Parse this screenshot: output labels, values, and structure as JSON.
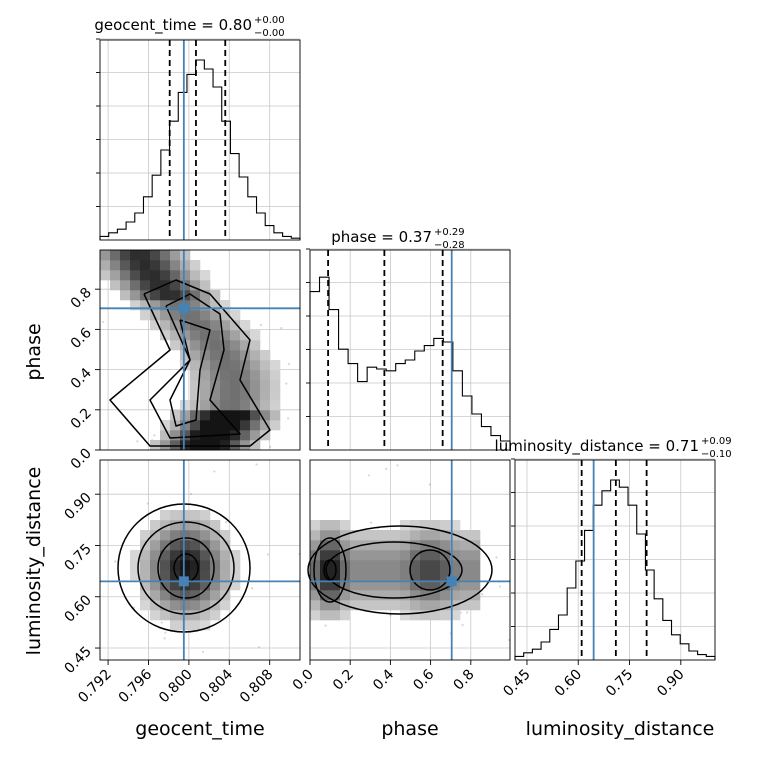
{
  "chart_data": {
    "type": "corner",
    "parameters": [
      "geocent_time",
      "phase",
      "luminosity_distance"
    ],
    "truths": {
      "geocent_time": 0.7995,
      "phase": 0.705,
      "luminosity_distance": 0.645
    },
    "ranges": {
      "geocent_time": [
        0.7912,
        0.811
      ],
      "phase": [
        0.0,
        0.995
      ],
      "luminosity_distance": [
        0.415,
        1.0
      ]
    },
    "titles": [
      {
        "param": "geocent_time",
        "main": "geocent_time = 0.80",
        "sup": "+0.00",
        "sub": "−0.00"
      },
      {
        "param": "phase",
        "main": "phase = 0.37",
        "sup": "+0.29",
        "sub": "−0.28"
      },
      {
        "param": "luminosity_distance",
        "main": "luminosity_distance = 0.71",
        "sup": "+0.09",
        "sub": "−0.10"
      }
    ],
    "quantiles": {
      "geocent_time": [
        0.7981,
        0.8007,
        0.8036
      ],
      "phase": [
        0.09,
        0.37,
        0.66
      ],
      "luminosity_distance": [
        0.61,
        0.71,
        0.8
      ]
    },
    "ticks": {
      "geocent_time": [
        "0.792",
        "0.796",
        "0.800",
        "0.804",
        "0.808"
      ],
      "phase_x": [
        "0.0",
        "0.2",
        "0.4",
        "0.6",
        "0.8"
      ],
      "phase_y": [
        "0.0",
        "0.2",
        "0.4",
        "0.6",
        "0.8"
      ],
      "luminosity_distance_x": [
        "0.45",
        "0.60",
        "0.75",
        "0.90"
      ],
      "luminosity_distance_y": [
        "0.45",
        "0.60",
        "0.75",
        "0.90"
      ]
    },
    "histograms": {
      "geocent_time": [
        0.02,
        0.04,
        0.06,
        0.1,
        0.15,
        0.24,
        0.36,
        0.5,
        0.66,
        0.82,
        0.92,
        1.0,
        0.95,
        0.85,
        0.66,
        0.48,
        0.35,
        0.24,
        0.15,
        0.08,
        0.04,
        0.02,
        0.01
      ],
      "phase": [
        0.88,
        0.96,
        0.78,
        0.56,
        0.48,
        0.38,
        0.46,
        0.45,
        0.44,
        0.48,
        0.5,
        0.55,
        0.58,
        0.62,
        0.6,
        0.44,
        0.3,
        0.2,
        0.13,
        0.08,
        0.05
      ],
      "luminosity_distance": [
        0.02,
        0.04,
        0.06,
        0.1,
        0.17,
        0.25,
        0.4,
        0.55,
        0.72,
        0.86,
        0.94,
        1.0,
        0.96,
        0.86,
        0.7,
        0.5,
        0.34,
        0.22,
        0.14,
        0.09,
        0.05,
        0.03,
        0.02
      ]
    },
    "grid": true,
    "colors": {
      "truth": "#4682b4",
      "hist": "#000000",
      "scatter": "#8c8c8c"
    }
  }
}
